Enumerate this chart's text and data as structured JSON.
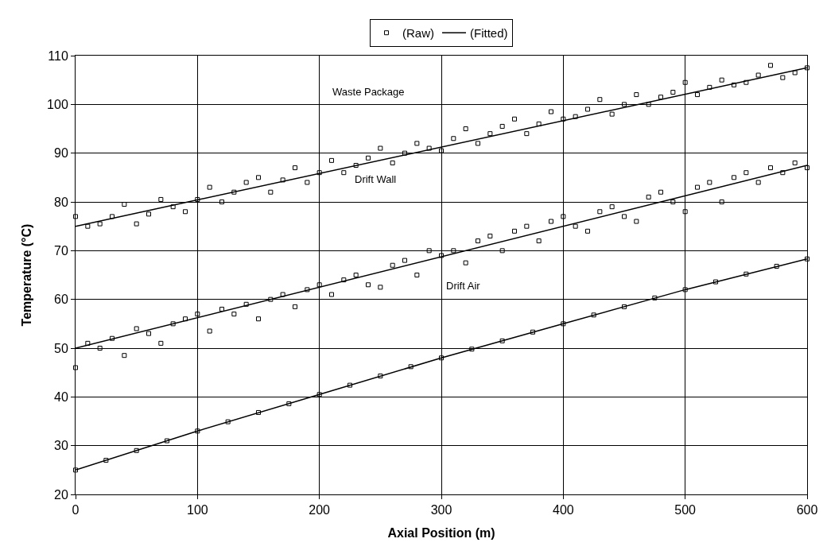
{
  "chart_data": {
    "type": "scatter",
    "xlabel": "Axial Position (m)",
    "ylabel": "Temperature (°C)",
    "xlim": [
      0,
      600
    ],
    "xticks": [
      0,
      100,
      200,
      300,
      400,
      500,
      600
    ],
    "ylim": [
      20,
      110
    ],
    "yticks": [
      20,
      30,
      40,
      50,
      60,
      70,
      80,
      90,
      100,
      110
    ],
    "grid": true,
    "legend": "top",
    "annotations": [
      "Waste Package",
      "Drift Wall",
      "Drift Air"
    ],
    "series": [
      {
        "name": "(Raw)",
        "marker": "square",
        "color": "#000000",
        "x": [
          0,
          10,
          20,
          30,
          40,
          50,
          60,
          70,
          80,
          90,
          100,
          110,
          120,
          130,
          140,
          150,
          160,
          170,
          180,
          190,
          200,
          210,
          220,
          230,
          240,
          250,
          260,
          270,
          280,
          290,
          300,
          310,
          320,
          330,
          340,
          350,
          360,
          370,
          380,
          390,
          400,
          410,
          420,
          430,
          440,
          450,
          460,
          470,
          480,
          490,
          500,
          510,
          520,
          530,
          540,
          550,
          560,
          570,
          580,
          590,
          600
        ],
        "values": [
          77,
          75,
          75.5,
          77,
          79.5,
          75.5,
          77.5,
          80.5,
          79,
          78,
          80.5,
          83,
          80,
          82,
          84,
          85,
          82,
          84.5,
          87,
          84,
          86,
          88.5,
          86,
          87.5,
          89,
          91,
          88,
          90,
          92,
          91,
          90.5,
          93,
          95,
          92,
          94,
          95.5,
          97,
          94,
          96,
          98.5,
          97,
          97.5,
          99,
          101,
          98,
          100,
          102,
          100,
          101.5,
          102.5,
          104.5,
          102,
          103.5,
          105,
          104,
          104.5,
          106,
          108,
          105.5,
          106.5,
          107.5
        ]
      },
      {
        "marker": "square",
        "color": "#000000",
        "x": [
          0,
          10,
          20,
          30,
          40,
          50,
          60,
          70,
          80,
          90,
          100,
          110,
          120,
          130,
          140,
          150,
          160,
          170,
          180,
          190,
          200,
          210,
          220,
          230,
          240,
          250,
          260,
          270,
          280,
          290,
          300,
          310,
          320,
          330,
          340,
          350,
          360,
          370,
          380,
          390,
          400,
          410,
          420,
          430,
          440,
          450,
          460,
          470,
          480,
          490,
          500,
          510,
          520,
          530,
          540,
          550,
          560,
          570,
          580,
          590,
          600
        ],
        "values": [
          46,
          51,
          50,
          52,
          48.5,
          54,
          53,
          51,
          55,
          56,
          57,
          53.5,
          58,
          57,
          59,
          56,
          60,
          61,
          58.5,
          62,
          63,
          61,
          64,
          65,
          63,
          62.5,
          67,
          68,
          65,
          70,
          69,
          70,
          67.5,
          72,
          73,
          70,
          74,
          75,
          72,
          76,
          77,
          75,
          74,
          78,
          79,
          77,
          76,
          81,
          82,
          80,
          78,
          83,
          84,
          80,
          85,
          86,
          84,
          87,
          86,
          88,
          87
        ]
      },
      {
        "marker": "square",
        "color": "#000000",
        "x": [
          0,
          25,
          50,
          75,
          100,
          125,
          150,
          175,
          200,
          225,
          250,
          275,
          300,
          325,
          350,
          375,
          400,
          425,
          450,
          475,
          500,
          525,
          550,
          575,
          600
        ],
        "values": [
          25,
          27,
          29,
          31,
          33,
          34.9,
          36.8,
          38.6,
          40.5,
          42.4,
          44.3,
          46.2,
          48,
          49.8,
          51.5,
          53.3,
          55,
          56.8,
          58.5,
          60.3,
          62,
          63.6,
          65.2,
          66.8,
          68.3
        ]
      },
      {
        "name": "(Fitted)",
        "type": "line",
        "marker": "none",
        "color": "#000000",
        "x": [
          0,
          600
        ],
        "values": [
          75,
          107.5
        ]
      },
      {
        "type": "line",
        "marker": "none",
        "color": "#000000",
        "x": [
          0,
          600
        ],
        "values": [
          50,
          87.5
        ]
      },
      {
        "type": "line",
        "marker": "none",
        "color": "#000000",
        "x": [
          0,
          100,
          200,
          300,
          400,
          500,
          600
        ],
        "values": [
          25,
          33,
          40.5,
          48,
          55,
          62,
          68.3
        ]
      }
    ]
  }
}
